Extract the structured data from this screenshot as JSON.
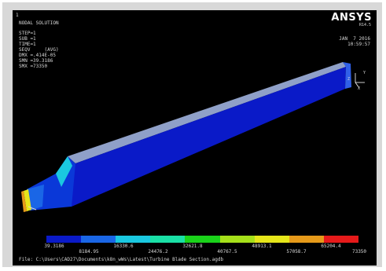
{
  "window": {
    "frame_label": "1"
  },
  "header": {
    "result_title": "NODAL SOLUTION",
    "step": "STEP=1",
    "sub": "SUB =1",
    "time": "TIME=1",
    "seqv": "SEQV     (AVG)",
    "dmx": "DMX =.414E-05",
    "smn": "SMN =39.3186",
    "smx": "SMX =73350"
  },
  "brand": {
    "name": "ANSYS",
    "version": "R14.5"
  },
  "datetime": {
    "date": "JAN  7 2016",
    "time": "10:59:57"
  },
  "legend": {
    "colors": [
      "#0a1ac8",
      "#1a66e6",
      "#1ac8e0",
      "#1ae0a6",
      "#1ad21a",
      "#a6e01a",
      "#e6e61a",
      "#e69a1a",
      "#e61a1a"
    ],
    "ticks_top": [
      "39.3186",
      "16330.6",
      "32621.8",
      "48913.1",
      "65204.4"
    ],
    "ticks_bottom": [
      "8184.95",
      "24476.2",
      "40767.5",
      "57058.7",
      "73350"
    ]
  },
  "footer": {
    "file_path": "File: C:\\Users\\CAD27\\Documents\\k8n_wWs\\Latest\\Turbine Blade Section.agdb"
  },
  "triad": {
    "x": "X",
    "y": "Y",
    "z": "Z"
  }
}
